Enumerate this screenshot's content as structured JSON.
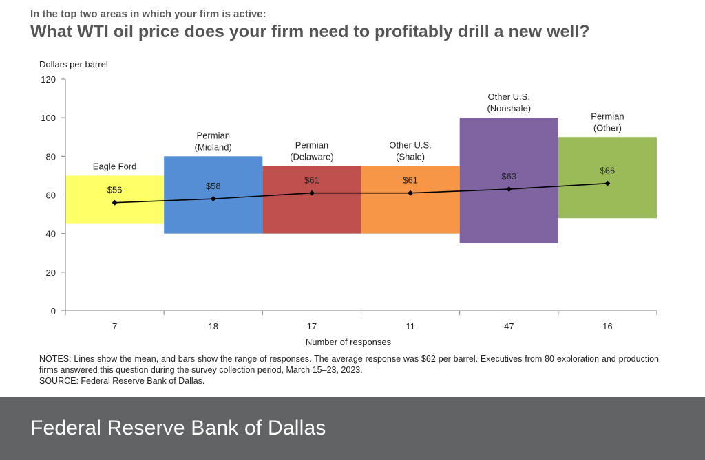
{
  "header": {
    "subtitle": "In the top two areas in which your firm is active:",
    "title": "What WTI oil price does your firm need to profitably drill a new well?"
  },
  "notes": {
    "line1": "NOTES: Lines show the mean, and bars show the range of responses. The average response was $62 per barrel. Executives from 80 exploration and production firms answered this question during the survey collection period, March 15–23, 2023.",
    "line2": "SOURCE: Federal Reserve Bank of Dallas."
  },
  "footer": {
    "brand": "Federal Reserve Bank of Dallas"
  },
  "chart_data": {
    "type": "bar",
    "ylabel": "Dollars per barrel",
    "xlabel": "Number of responses",
    "ylim": [
      0,
      120
    ],
    "yticks": [
      0,
      20,
      40,
      60,
      80,
      100,
      120
    ],
    "grid": false,
    "categories": [
      {
        "name": "Eagle Ford",
        "responses": "7",
        "low": 45,
        "high": 70,
        "mean": 56,
        "mean_label": "$56",
        "color": "#ffff66"
      },
      {
        "name": "Permian (Midland)",
        "responses": "18",
        "low": 40,
        "high": 80,
        "mean": 58,
        "mean_label": "$58",
        "color": "#558ed5"
      },
      {
        "name": "Permian (Delaware)",
        "responses": "17",
        "low": 40,
        "high": 75,
        "mean": 61,
        "mean_label": "$61",
        "color": "#c0504d"
      },
      {
        "name": "Other U.S. (Shale)",
        "responses": "11",
        "low": 40,
        "high": 75,
        "mean": 61,
        "mean_label": "$61",
        "color": "#f79646"
      },
      {
        "name": "Other U.S. (Nonshale)",
        "responses": "47",
        "low": 35,
        "high": 100,
        "mean": 63,
        "mean_label": "$63",
        "color": "#8064a2"
      },
      {
        "name": "Permian (Other)",
        "responses": "16",
        "low": 48,
        "high": 90,
        "mean": 66,
        "mean_label": "$66",
        "color": "#9bbb59"
      }
    ],
    "category_label_lines": [
      [
        "Eagle Ford"
      ],
      [
        "Permian",
        "(Midland)"
      ],
      [
        "Permian",
        "(Delaware)"
      ],
      [
        "Other U.S.",
        "(Shale)"
      ],
      [
        "Other U.S.",
        "(Nonshale)"
      ],
      [
        "Permian",
        "(Other)"
      ]
    ]
  }
}
